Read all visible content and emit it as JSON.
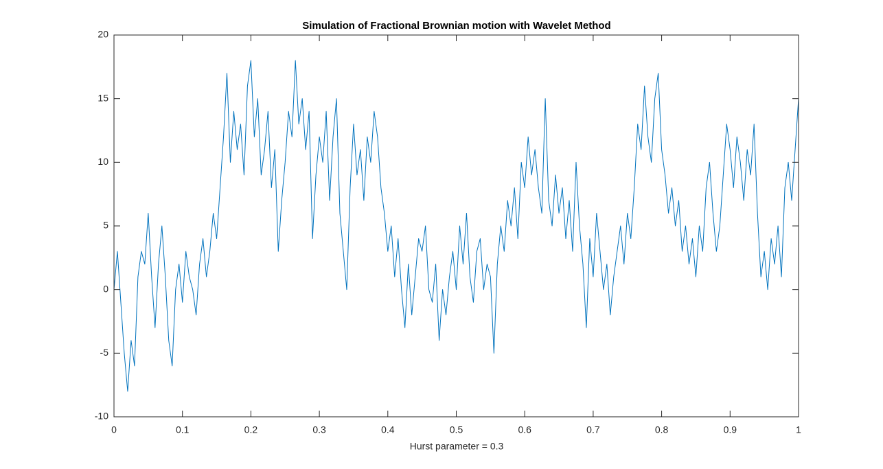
{
  "chart_data": {
    "type": "line",
    "title": "Simulation of Fractional Brownian motion with Wavelet Method",
    "x_label": "Hurst parameter = 0.3",
    "color": "#0072bd",
    "grid": false,
    "xlim": [
      0,
      1
    ],
    "ylim": [
      -10,
      20
    ],
    "xticks": [
      0,
      0.1,
      0.2,
      0.3,
      0.4,
      0.5,
      0.6,
      0.7,
      0.8,
      0.9,
      1
    ],
    "yticks": [
      -10,
      -5,
      0,
      5,
      10,
      15,
      20
    ],
    "x": [
      0,
      0.005,
      0.01,
      0.015,
      0.02,
      0.025,
      0.03,
      0.035,
      0.04,
      0.045,
      0.05,
      0.055,
      0.06,
      0.065,
      0.07,
      0.075,
      0.08,
      0.085,
      0.09,
      0.095,
      0.1,
      0.105,
      0.11,
      0.115,
      0.12,
      0.125,
      0.13,
      0.135,
      0.14,
      0.145,
      0.15,
      0.155,
      0.16,
      0.165,
      0.17,
      0.175,
      0.18,
      0.185,
      0.19,
      0.195,
      0.2,
      0.205,
      0.21,
      0.215,
      0.22,
      0.225,
      0.23,
      0.235,
      0.24,
      0.245,
      0.25,
      0.255,
      0.26,
      0.265,
      0.27,
      0.275,
      0.28,
      0.285,
      0.29,
      0.295,
      0.3,
      0.305,
      0.31,
      0.315,
      0.32,
      0.325,
      0.33,
      0.335,
      0.34,
      0.345,
      0.35,
      0.355,
      0.36,
      0.365,
      0.37,
      0.375,
      0.38,
      0.385,
      0.39,
      0.395,
      0.4,
      0.405,
      0.41,
      0.415,
      0.42,
      0.425,
      0.43,
      0.435,
      0.44,
      0.445,
      0.45,
      0.455,
      0.46,
      0.465,
      0.47,
      0.475,
      0.48,
      0.485,
      0.49,
      0.495,
      0.5,
      0.505,
      0.51,
      0.515,
      0.52,
      0.525,
      0.53,
      0.535,
      0.54,
      0.545,
      0.55,
      0.555,
      0.56,
      0.565,
      0.57,
      0.575,
      0.58,
      0.585,
      0.59,
      0.595,
      0.6,
      0.605,
      0.61,
      0.615,
      0.62,
      0.625,
      0.63,
      0.635,
      0.64,
      0.645,
      0.65,
      0.655,
      0.66,
      0.665,
      0.67,
      0.675,
      0.68,
      0.685,
      0.69,
      0.695,
      0.7,
      0.705,
      0.71,
      0.715,
      0.72,
      0.725,
      0.73,
      0.735,
      0.74,
      0.745,
      0.75,
      0.755,
      0.76,
      0.765,
      0.77,
      0.775,
      0.78,
      0.785,
      0.79,
      0.795,
      0.8,
      0.805,
      0.81,
      0.815,
      0.82,
      0.825,
      0.83,
      0.835,
      0.84,
      0.845,
      0.85,
      0.855,
      0.86,
      0.865,
      0.87,
      0.875,
      0.88,
      0.885,
      0.89,
      0.895,
      0.9,
      0.905,
      0.91,
      0.915,
      0.92,
      0.925,
      0.93,
      0.935,
      0.94,
      0.945,
      0.95,
      0.955,
      0.96,
      0.965,
      0.97,
      0.975,
      0.98,
      0.985,
      0.99,
      0.995,
      1
    ],
    "values": [
      0,
      3,
      -1,
      -5,
      -8,
      -4,
      -6,
      1,
      3,
      2,
      6,
      1,
      -3,
      2,
      5,
      1,
      -4,
      -6,
      0,
      2,
      -1,
      3,
      1,
      0,
      -2,
      2,
      4,
      1,
      3,
      6,
      4,
      8,
      12,
      17,
      10,
      14,
      11,
      13,
      9,
      16,
      18,
      12,
      15,
      9,
      11,
      14,
      8,
      11,
      3,
      7,
      10,
      14,
      12,
      18,
      13,
      15,
      11,
      14,
      4,
      9,
      12,
      10,
      14,
      7,
      12,
      15,
      6,
      3,
      0,
      8,
      13,
      9,
      11,
      7,
      12,
      10,
      14,
      12,
      8,
      6,
      3,
      5,
      1,
      4,
      0,
      -3,
      2,
      -2,
      1,
      4,
      3,
      5,
      0,
      -1,
      2,
      -4,
      0,
      -2,
      1,
      3,
      0,
      5,
      2,
      6,
      1,
      -1,
      3,
      4,
      0,
      2,
      1,
      -5,
      2,
      5,
      3,
      7,
      5,
      8,
      4,
      10,
      8,
      12,
      9,
      11,
      8,
      6,
      15,
      7,
      5,
      9,
      6,
      8,
      4,
      7,
      3,
      10,
      5,
      2,
      -3,
      4,
      1,
      6,
      3,
      0,
      2,
      -2,
      1,
      3,
      5,
      2,
      6,
      4,
      8,
      13,
      11,
      16,
      12,
      10,
      15,
      17,
      11,
      9,
      6,
      8,
      5,
      7,
      3,
      5,
      2,
      4,
      1,
      5,
      3,
      8,
      10,
      6,
      3,
      5,
      9,
      13,
      11,
      8,
      12,
      10,
      7,
      11,
      9,
      13,
      6,
      1,
      3,
      0,
      4,
      2,
      5,
      1,
      8,
      10,
      7,
      11,
      15
    ]
  }
}
